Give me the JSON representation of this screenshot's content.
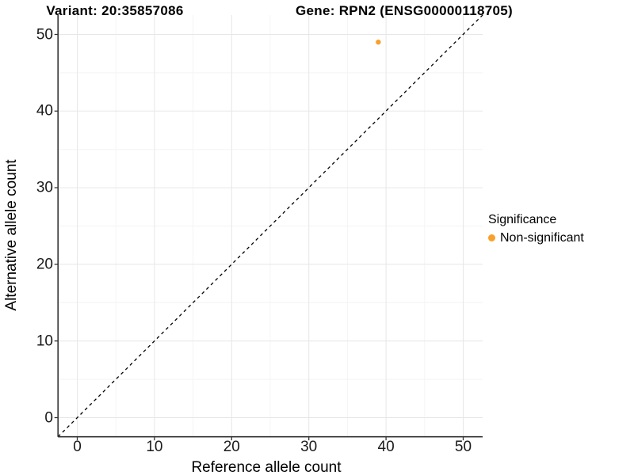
{
  "titles": {
    "variant": "Variant: 20:35857086",
    "gene": "Gene: RPN2 (ENSG00000118705)"
  },
  "chart_data": {
    "type": "scatter",
    "title": "Variant: 20:35857086   Gene: RPN2 (ENSG00000118705)",
    "xlabel": "Reference allele count",
    "ylabel": "Alternative allele count",
    "xlim": [
      -2.5,
      52.5
    ],
    "ylim": [
      -2.5,
      52.5
    ],
    "x_ticks": [
      0,
      10,
      20,
      30,
      40,
      50
    ],
    "y_ticks": [
      0,
      10,
      20,
      30,
      40,
      50
    ],
    "x_minor_ticks": [
      5,
      15,
      25,
      35,
      45
    ],
    "y_minor_ticks": [
      5,
      15,
      25,
      35,
      45
    ],
    "grid": "major+minor",
    "series": [
      {
        "name": "Non-significant",
        "color": "#F9A02B",
        "points": [
          {
            "x": 39,
            "y": 49
          }
        ]
      }
    ],
    "reference_line": {
      "type": "identity y=x",
      "style": "dashed",
      "color": "#000000"
    },
    "legend": {
      "title": "Significance",
      "position": "right",
      "items": [
        {
          "label": "Non-significant",
          "color": "#F9A02B"
        }
      ]
    }
  },
  "colors": {
    "point": "#F9A02B",
    "grid_major": "#E7E7E7",
    "grid_minor": "#F4F4F4",
    "axis_line": "#333333",
    "tick_mark": "#333333",
    "reference_line": "#000000",
    "background": "#FFFFFF"
  }
}
